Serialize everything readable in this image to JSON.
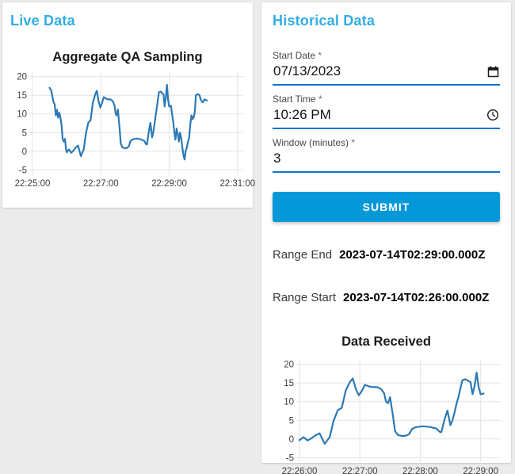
{
  "theme": {
    "page_background": "#ebebeb",
    "card_background": "#ffffff",
    "header_blue": "#32ade4",
    "underline_blue": "#0e74d1",
    "submit_button_blue": "#0498d8",
    "chart_line_blue": "#2c79b6",
    "grid_color": "#e3e3e3"
  },
  "live_panel": {
    "title": "Live Data"
  },
  "historical_panel": {
    "title": "Historical Data",
    "fields": [
      {
        "label": "Start Date",
        "required_marker": "*",
        "value": "07/13/2023",
        "icon": "calendar-icon"
      },
      {
        "label": "Start Time",
        "required_marker": "*",
        "value": "10:26 PM",
        "icon": "clock-icon"
      },
      {
        "label": "Window (minutes)",
        "required_marker": "*",
        "value": "3",
        "icon": null
      }
    ],
    "submit_label": "SUBMIT",
    "range_end": {
      "label": "Range End",
      "value": "2023-07-14T02:29:00.000Z"
    },
    "range_start": {
      "label": "Range Start",
      "value": "2023-07-14T02:26:00.000Z"
    }
  },
  "chart_data": [
    {
      "id": "aggregate-qa-sampling",
      "type": "line",
      "title": "Aggregate QA Sampling",
      "xlabel": "",
      "ylabel": "",
      "x_unit": "seconds after 22:25:00",
      "x_domain": [
        0,
        370
      ],
      "y_domain": [
        -6.2,
        21.2
      ],
      "ylim": [
        -5,
        20
      ],
      "grid": true,
      "legend": false,
      "line_color": "#2c79b6",
      "x_ticks": [
        [
          0,
          "22:25:00"
        ],
        [
          120,
          "22:27:00"
        ],
        [
          240,
          "22:29:00"
        ],
        [
          360,
          "22:31:00"
        ]
      ],
      "y_ticks": [
        -5,
        0,
        5,
        10,
        15,
        20
      ],
      "points": [
        [
          30,
          17.0
        ],
        [
          33,
          16.3
        ],
        [
          35,
          14.6
        ],
        [
          37,
          13.1
        ],
        [
          39,
          12.6
        ],
        [
          41,
          9.6
        ],
        [
          43,
          11.1
        ],
        [
          45,
          9.0
        ],
        [
          47,
          10.3
        ],
        [
          49,
          9.1
        ],
        [
          51,
          7.0
        ],
        [
          53,
          3.2
        ],
        [
          55,
          2.6
        ],
        [
          57,
          3.3
        ],
        [
          59,
          0.5
        ],
        [
          60,
          -0.3
        ],
        [
          64,
          0.5
        ],
        [
          68,
          -0.4
        ],
        [
          72,
          0.2
        ],
        [
          76,
          1.0
        ],
        [
          80,
          1.5
        ],
        [
          85,
          -1.3
        ],
        [
          90,
          0.5
        ],
        [
          94,
          5.0
        ],
        [
          98,
          7.7
        ],
        [
          102,
          8.3
        ],
        [
          106,
          13.0
        ],
        [
          110,
          15.2
        ],
        [
          113,
          16.2
        ],
        [
          116,
          13.4
        ],
        [
          119,
          11.7
        ],
        [
          122,
          12.9
        ],
        [
          125,
          14.5
        ],
        [
          129,
          14.1
        ],
        [
          133,
          13.9
        ],
        [
          137,
          13.9
        ],
        [
          141,
          13.4
        ],
        [
          144,
          12.3
        ],
        [
          146,
          10.0
        ],
        [
          148,
          9.6
        ],
        [
          150,
          11.2
        ],
        [
          153,
          6.0
        ],
        [
          155,
          2.1
        ],
        [
          158,
          1.0
        ],
        [
          162,
          0.8
        ],
        [
          166,
          0.9
        ],
        [
          169,
          1.3
        ],
        [
          172,
          2.7
        ],
        [
          175,
          3.1
        ],
        [
          179,
          3.3
        ],
        [
          183,
          3.4
        ],
        [
          187,
          3.3
        ],
        [
          190,
          3.2
        ],
        [
          193,
          3.0
        ],
        [
          196,
          2.8
        ],
        [
          199,
          2.0
        ],
        [
          201,
          1.8
        ],
        [
          204,
          5.1
        ],
        [
          207,
          7.6
        ],
        [
          210,
          3.7
        ],
        [
          212,
          5.0
        ],
        [
          214,
          7.0
        ],
        [
          216,
          9.4
        ],
        [
          218,
          11.3
        ],
        [
          220,
          13.7
        ],
        [
          222,
          15.8
        ],
        [
          225,
          16.0
        ],
        [
          228,
          15.5
        ],
        [
          230,
          15.2
        ],
        [
          232,
          12.0
        ],
        [
          234,
          14.2
        ],
        [
          236,
          17.8
        ],
        [
          238,
          13.9
        ],
        [
          240,
          12.0
        ],
        [
          243,
          12.2
        ],
        [
          245,
          10.1
        ],
        [
          247,
          8.0
        ],
        [
          249,
          5.2
        ],
        [
          251,
          3.1
        ],
        [
          253,
          6.1
        ],
        [
          255,
          4.6
        ],
        [
          257,
          2.6
        ],
        [
          259,
          5.0
        ],
        [
          261,
          3.6
        ],
        [
          263,
          1.1
        ],
        [
          265,
          -1.0
        ],
        [
          267,
          -2.2
        ],
        [
          269,
          0.2
        ],
        [
          271,
          1.0
        ],
        [
          273,
          2.6
        ],
        [
          275,
          3.6
        ],
        [
          277,
          7.0
        ],
        [
          279,
          9.6
        ],
        [
          281,
          8.6
        ],
        [
          283,
          9.1
        ],
        [
          285,
          10.6
        ],
        [
          287,
          15.0
        ],
        [
          290,
          15.3
        ],
        [
          293,
          15.1
        ],
        [
          296,
          13.6
        ],
        [
          299,
          13.1
        ],
        [
          302,
          13.9
        ],
        [
          306,
          13.6
        ]
      ]
    },
    {
      "id": "data-received",
      "type": "line",
      "title": "Data Received",
      "xlabel": "",
      "ylabel": "",
      "x_unit": "seconds after 22:26:00",
      "x_domain": [
        0,
        200
      ],
      "y_domain": [
        -6.2,
        21.2
      ],
      "ylim": [
        -5,
        20
      ],
      "grid": true,
      "legend": false,
      "line_color": "#2c79b6",
      "x_ticks": [
        [
          0,
          "22:26:00"
        ],
        [
          60,
          "22:27:00"
        ],
        [
          120,
          "22:28:00"
        ],
        [
          180,
          "22:29:00"
        ]
      ],
      "y_ticks": [
        -5,
        0,
        5,
        10,
        15,
        20
      ],
      "points": [
        [
          0,
          -0.3
        ],
        [
          4,
          0.5
        ],
        [
          8,
          -0.4
        ],
        [
          12,
          0.2
        ],
        [
          16,
          1.0
        ],
        [
          20,
          1.5
        ],
        [
          25,
          -1.3
        ],
        [
          30,
          0.5
        ],
        [
          34,
          5.0
        ],
        [
          38,
          7.7
        ],
        [
          42,
          8.3
        ],
        [
          46,
          13.0
        ],
        [
          50,
          15.2
        ],
        [
          53,
          16.2
        ],
        [
          56,
          13.4
        ],
        [
          59,
          11.7
        ],
        [
          62,
          12.9
        ],
        [
          65,
          14.5
        ],
        [
          69,
          14.1
        ],
        [
          73,
          13.9
        ],
        [
          77,
          13.9
        ],
        [
          81,
          13.4
        ],
        [
          84,
          12.3
        ],
        [
          86,
          10.0
        ],
        [
          88,
          9.6
        ],
        [
          90,
          11.2
        ],
        [
          93,
          6.0
        ],
        [
          95,
          2.1
        ],
        [
          98,
          1.0
        ],
        [
          102,
          0.8
        ],
        [
          106,
          0.9
        ],
        [
          109,
          1.3
        ],
        [
          112,
          2.7
        ],
        [
          115,
          3.1
        ],
        [
          119,
          3.3
        ],
        [
          123,
          3.4
        ],
        [
          127,
          3.3
        ],
        [
          130,
          3.2
        ],
        [
          133,
          3.0
        ],
        [
          136,
          2.8
        ],
        [
          139,
          2.0
        ],
        [
          141,
          1.8
        ],
        [
          144,
          5.1
        ],
        [
          147,
          7.6
        ],
        [
          150,
          3.7
        ],
        [
          152,
          5.0
        ],
        [
          154,
          7.0
        ],
        [
          156,
          9.4
        ],
        [
          158,
          11.3
        ],
        [
          160,
          13.7
        ],
        [
          162,
          15.8
        ],
        [
          165,
          16.0
        ],
        [
          168,
          15.5
        ],
        [
          170,
          15.2
        ],
        [
          172,
          12.0
        ],
        [
          174,
          14.2
        ],
        [
          176,
          17.8
        ],
        [
          178,
          13.9
        ],
        [
          180,
          12.0
        ],
        [
          183,
          12.2
        ]
      ]
    }
  ]
}
